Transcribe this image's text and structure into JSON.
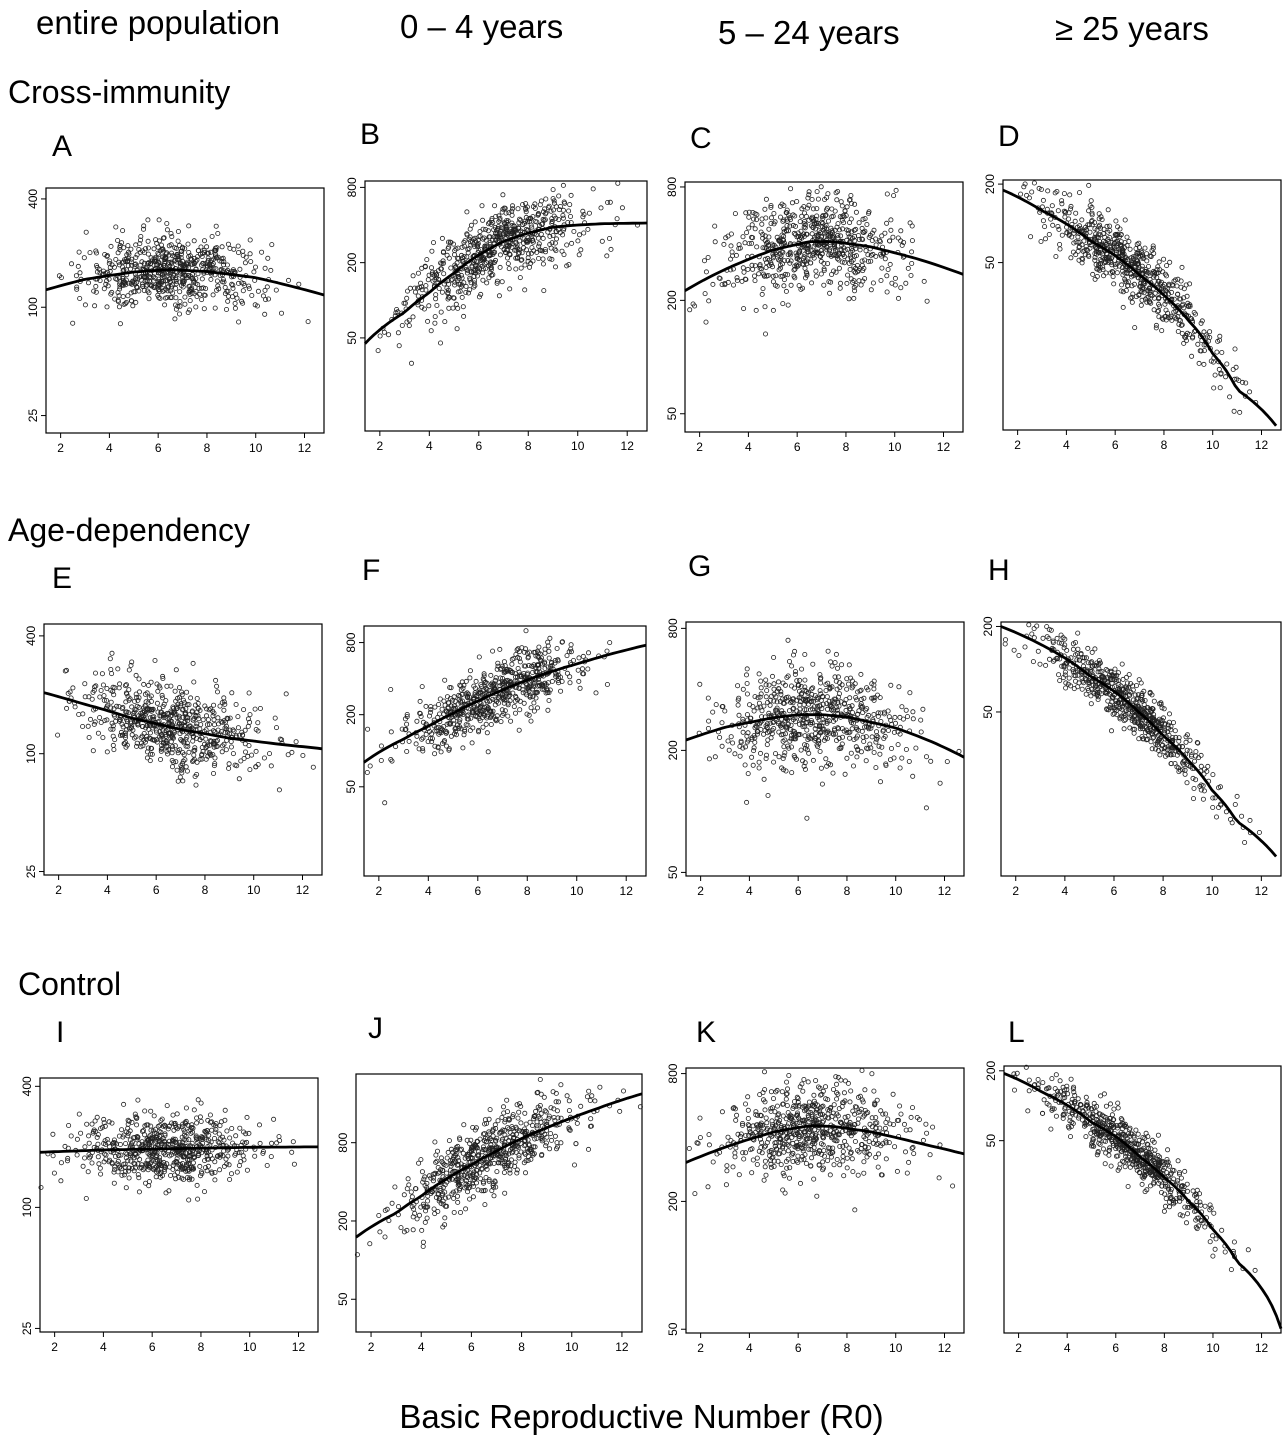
{
  "column_headers": [
    "entire population",
    "0 – 4 years",
    "5 – 24 years",
    "≥ 25 years"
  ],
  "row_titles": [
    "Cross-immunity",
    "Age-dependency",
    "Control"
  ],
  "x_axis_label": "Basic Reproductive Number (R0)",
  "chart_data": [
    {
      "panel": "A",
      "type": "scatter",
      "x_ticks": [
        2,
        4,
        6,
        8,
        10,
        12
      ],
      "x_range": [
        1.4,
        12.8
      ],
      "y_scale": "log",
      "y_ticks": [
        25,
        100,
        400
      ],
      "y_range": [
        20,
        460
      ],
      "trend": {
        "x": [
          1.4,
          3,
          5,
          6.5,
          8,
          10,
          12.8
        ],
        "y": [
          125,
          143,
          157,
          162,
          158,
          146,
          117
        ]
      },
      "cloud": {
        "center": 160,
        "spread": 0.22
      }
    },
    {
      "panel": "B",
      "type": "scatter",
      "x_ticks": [
        2,
        4,
        6,
        8,
        10,
        12
      ],
      "x_range": [
        1.4,
        12.8
      ],
      "y_scale": "log",
      "y_ticks": [
        50,
        200,
        800
      ],
      "y_range": [
        9,
        900
      ],
      "trend": {
        "x": [
          1.4,
          3,
          4,
          5,
          6,
          7,
          8,
          9,
          10,
          11,
          12.8
        ],
        "y": [
          45,
          80,
          115,
          165,
          230,
          295,
          345,
          385,
          400,
          410,
          415
        ]
      },
      "cloud": {
        "spread": 0.35
      }
    },
    {
      "panel": "C",
      "type": "scatter",
      "x_ticks": [
        2,
        4,
        6,
        8,
        10,
        12
      ],
      "x_range": [
        1.4,
        12.8
      ],
      "y_scale": "log",
      "y_ticks": [
        50,
        200,
        800
      ],
      "y_range": [
        40,
        850
      ],
      "trend": {
        "x": [
          1.4,
          3,
          5,
          6.5,
          7.5,
          9,
          11,
          12.8
        ],
        "y": [
          225,
          290,
          370,
          410,
          410,
          385,
          330,
          275
        ]
      },
      "cloud": {
        "spread": 0.3
      }
    },
    {
      "panel": "D",
      "type": "scatter",
      "x_ticks": [
        2,
        4,
        6,
        8,
        10,
        12
      ],
      "x_range": [
        1.4,
        12.8
      ],
      "y_scale": "log",
      "y_ticks": [
        50,
        200
      ],
      "y_range": [
        2.6,
        215
      ],
      "trend": {
        "x": [
          1.4,
          3,
          5,
          7,
          8,
          9,
          10,
          11,
          12.6
        ],
        "y": [
          180,
          125,
          73,
          40,
          28,
          18,
          10,
          5.3,
          2.8
        ]
      },
      "cloud": {
        "spread": 0.3
      }
    },
    {
      "panel": "E",
      "type": "scatter",
      "x_ticks": [
        2,
        4,
        6,
        8,
        10,
        12
      ],
      "x_range": [
        1.4,
        12.8
      ],
      "y_scale": "log",
      "y_ticks": [
        25,
        100,
        400
      ],
      "y_range": [
        24,
        460
      ],
      "trend": {
        "x": [
          1.4,
          3,
          5,
          7,
          9,
          11,
          12.8
        ],
        "y": [
          205,
          180,
          152,
          133,
          120,
          112,
          106
        ]
      },
      "cloud": {
        "spread": 0.25
      }
    },
    {
      "panel": "F",
      "type": "scatter",
      "x_ticks": [
        2,
        4,
        6,
        8,
        10,
        12
      ],
      "x_range": [
        1.4,
        12.8
      ],
      "y_scale": "log",
      "y_ticks": [
        50,
        200,
        800
      ],
      "y_range": [
        9,
        1100
      ],
      "trend": {
        "x": [
          1.4,
          3,
          4,
          5,
          6,
          7,
          8,
          9,
          10,
          11,
          12.8
        ],
        "y": [
          80,
          125,
          160,
          205,
          260,
          320,
          390,
          460,
          530,
          610,
          760
        ]
      },
      "cloud": {
        "spread": 0.3
      }
    },
    {
      "panel": "G",
      "type": "scatter",
      "x_ticks": [
        2,
        4,
        6,
        8,
        10,
        12
      ],
      "x_range": [
        1.4,
        12.8
      ],
      "y_scale": "log",
      "y_ticks": [
        50,
        200,
        800
      ],
      "y_range": [
        48,
        860
      ],
      "trend": {
        "x": [
          1.4,
          3,
          5,
          6,
          7,
          8,
          10,
          11.5,
          12.8
        ],
        "y": [
          225,
          260,
          290,
          300,
          300,
          292,
          258,
          220,
          185
        ]
      },
      "cloud": {
        "spread": 0.28
      }
    },
    {
      "panel": "H",
      "type": "scatter",
      "x_ticks": [
        2,
        4,
        6,
        8,
        10,
        12
      ],
      "x_range": [
        1.4,
        12.8
      ],
      "y_scale": "log",
      "y_ticks": [
        50,
        200
      ],
      "y_range": [
        3.5,
        215
      ],
      "trend": {
        "x": [
          1.4,
          3,
          5,
          7,
          8,
          9,
          10,
          11,
          12.6
        ],
        "y": [
          200,
          150,
          90,
          50,
          34,
          23,
          14,
          8.5,
          4.8
        ]
      },
      "cloud": {
        "spread": 0.22
      }
    },
    {
      "panel": "I",
      "type": "scatter",
      "x_ticks": [
        2,
        4,
        6,
        8,
        10,
        12
      ],
      "x_range": [
        1.4,
        12.8
      ],
      "y_scale": "log",
      "y_ticks": [
        25,
        100,
        400
      ],
      "y_range": [
        24,
        440
      ],
      "trend": {
        "x": [
          1.4,
          4,
          7,
          10,
          12.8
        ],
        "y": [
          188,
          193,
          196,
          199,
          200
        ]
      },
      "cloud": {
        "spread": 0.2
      }
    },
    {
      "panel": "J",
      "type": "scatter",
      "x_ticks": [
        2,
        4,
        6,
        8,
        10,
        12
      ],
      "x_range": [
        1.4,
        12.8
      ],
      "y_scale": "log",
      "y_ticks": [
        50,
        200,
        800
      ],
      "y_range": [
        28,
        2700
      ],
      "trend": {
        "x": [
          1.4,
          3,
          4,
          5,
          6,
          7,
          8,
          9,
          10,
          11,
          12.8
        ],
        "y": [
          150,
          230,
          310,
          420,
          540,
          690,
          860,
          1040,
          1240,
          1460,
          1900
        ]
      },
      "cloud": {
        "spread": 0.3
      }
    },
    {
      "panel": "K",
      "type": "scatter",
      "x_ticks": [
        2,
        4,
        6,
        8,
        10,
        12
      ],
      "x_range": [
        1.4,
        12.8
      ],
      "y_scale": "log",
      "y_ticks": [
        50,
        200,
        800
      ],
      "y_range": [
        48,
        850
      ],
      "trend": {
        "x": [
          1.4,
          3,
          5,
          6.5,
          7.5,
          9,
          11,
          12.8
        ],
        "y": [
          305,
          360,
          425,
          455,
          450,
          425,
          375,
          335
        ]
      },
      "cloud": {
        "spread": 0.25
      }
    },
    {
      "panel": "L",
      "type": "scatter",
      "x_ticks": [
        2,
        4,
        6,
        8,
        10,
        12
      ],
      "x_range": [
        1.4,
        12.8
      ],
      "y_scale": "log",
      "y_ticks": [
        50,
        200
      ],
      "y_range": [
        1.1,
        220
      ],
      "trend": {
        "x": [
          1.4,
          3,
          5,
          7,
          8,
          9,
          10,
          11,
          12.8
        ],
        "y": [
          190,
          130,
          72,
          36,
          24,
          15,
          8.5,
          4.5,
          1.2
        ]
      },
      "cloud": {
        "spread": 0.25
      }
    }
  ]
}
